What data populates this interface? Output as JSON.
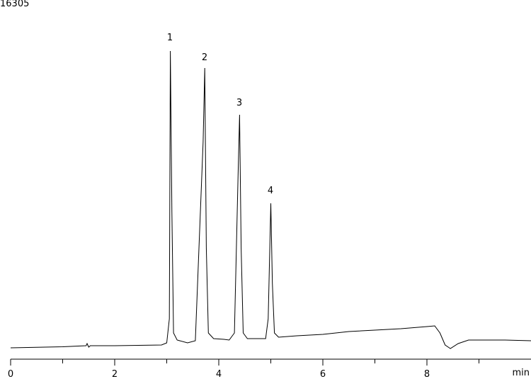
{
  "chart_data": {
    "type": "line",
    "title": "16305",
    "xlabel": "min",
    "annotations": [
      "1",
      "2",
      "3",
      "4"
    ],
    "x": [
      0,
      1.0,
      1.45,
      1.47,
      1.5,
      1.53,
      2.0,
      2.9,
      3.0,
      3.05,
      3.07,
      3.1,
      3.13,
      3.2,
      3.4,
      3.55,
      3.7,
      3.73,
      3.76,
      3.8,
      3.9,
      4.1,
      4.2,
      4.3,
      4.37,
      4.4,
      4.43,
      4.47,
      4.55,
      4.9,
      4.95,
      5.0,
      5.03,
      5.07,
      5.15,
      5.5,
      6.0,
      6.5,
      7.0,
      7.5,
      8.0,
      8.15,
      8.25,
      8.35,
      8.45,
      8.6,
      8.8,
      9.5,
      10
    ],
    "values": [
      520,
      568,
      617,
      715,
      552,
      617,
      617,
      650,
      747,
      1851,
      14129,
      6723,
      1202,
      877,
      747,
      844,
      9971,
      13349,
      5099,
      1202,
      942,
      909,
      877,
      1202,
      8347,
      11206,
      5099,
      1202,
      942,
      942,
      1851,
      7146,
      3475,
      1202,
      1007,
      1072,
      1137,
      1267,
      1332,
      1397,
      1494,
      1527,
      1202,
      650,
      487,
      715,
      877,
      877,
      844
    ],
    "color": "#000000",
    "xlim": [
      0,
      10
    ],
    "xticks": [
      0,
      2,
      4,
      6,
      8
    ],
    "xminor_ticks": [
      1,
      3,
      5,
      7,
      9
    ],
    "ylim": [
      0,
      16305
    ],
    "yticks": [
      16305
    ]
  }
}
